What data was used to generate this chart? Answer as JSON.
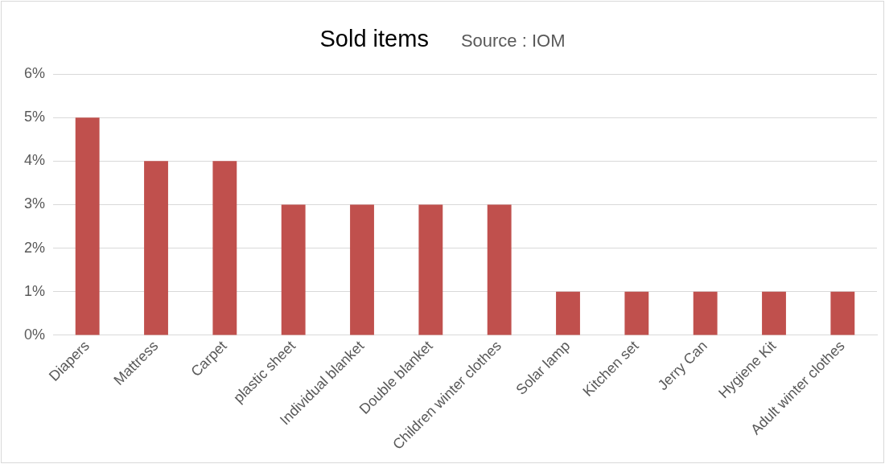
{
  "chart_data": {
    "type": "bar",
    "title": "Sold items",
    "annotations": [
      "Source : IOM"
    ],
    "categories": [
      "Diapers",
      "Mattress",
      "Carpet",
      "plastic sheet",
      "Individual blanket",
      "Double blanket",
      "Children winter clothes",
      "Solar lamp",
      "Kitchen set",
      "Jerry Can",
      "Hygiene Kit",
      "Adult winter clothes"
    ],
    "values": [
      5,
      4,
      4,
      3,
      3,
      3,
      3,
      1,
      1,
      1,
      1,
      1
    ],
    "color": "#c0504d",
    "ylim": [
      0,
      6
    ],
    "yticks": [
      {
        "value": 0,
        "label": "0%"
      },
      {
        "value": 1,
        "label": "1%"
      },
      {
        "value": 2,
        "label": "2%"
      },
      {
        "value": 3,
        "label": "3%"
      },
      {
        "value": 4,
        "label": "4%"
      },
      {
        "value": 5,
        "label": "5%"
      },
      {
        "value": 6,
        "label": "6%"
      }
    ],
    "grid": "y",
    "legend": false
  }
}
